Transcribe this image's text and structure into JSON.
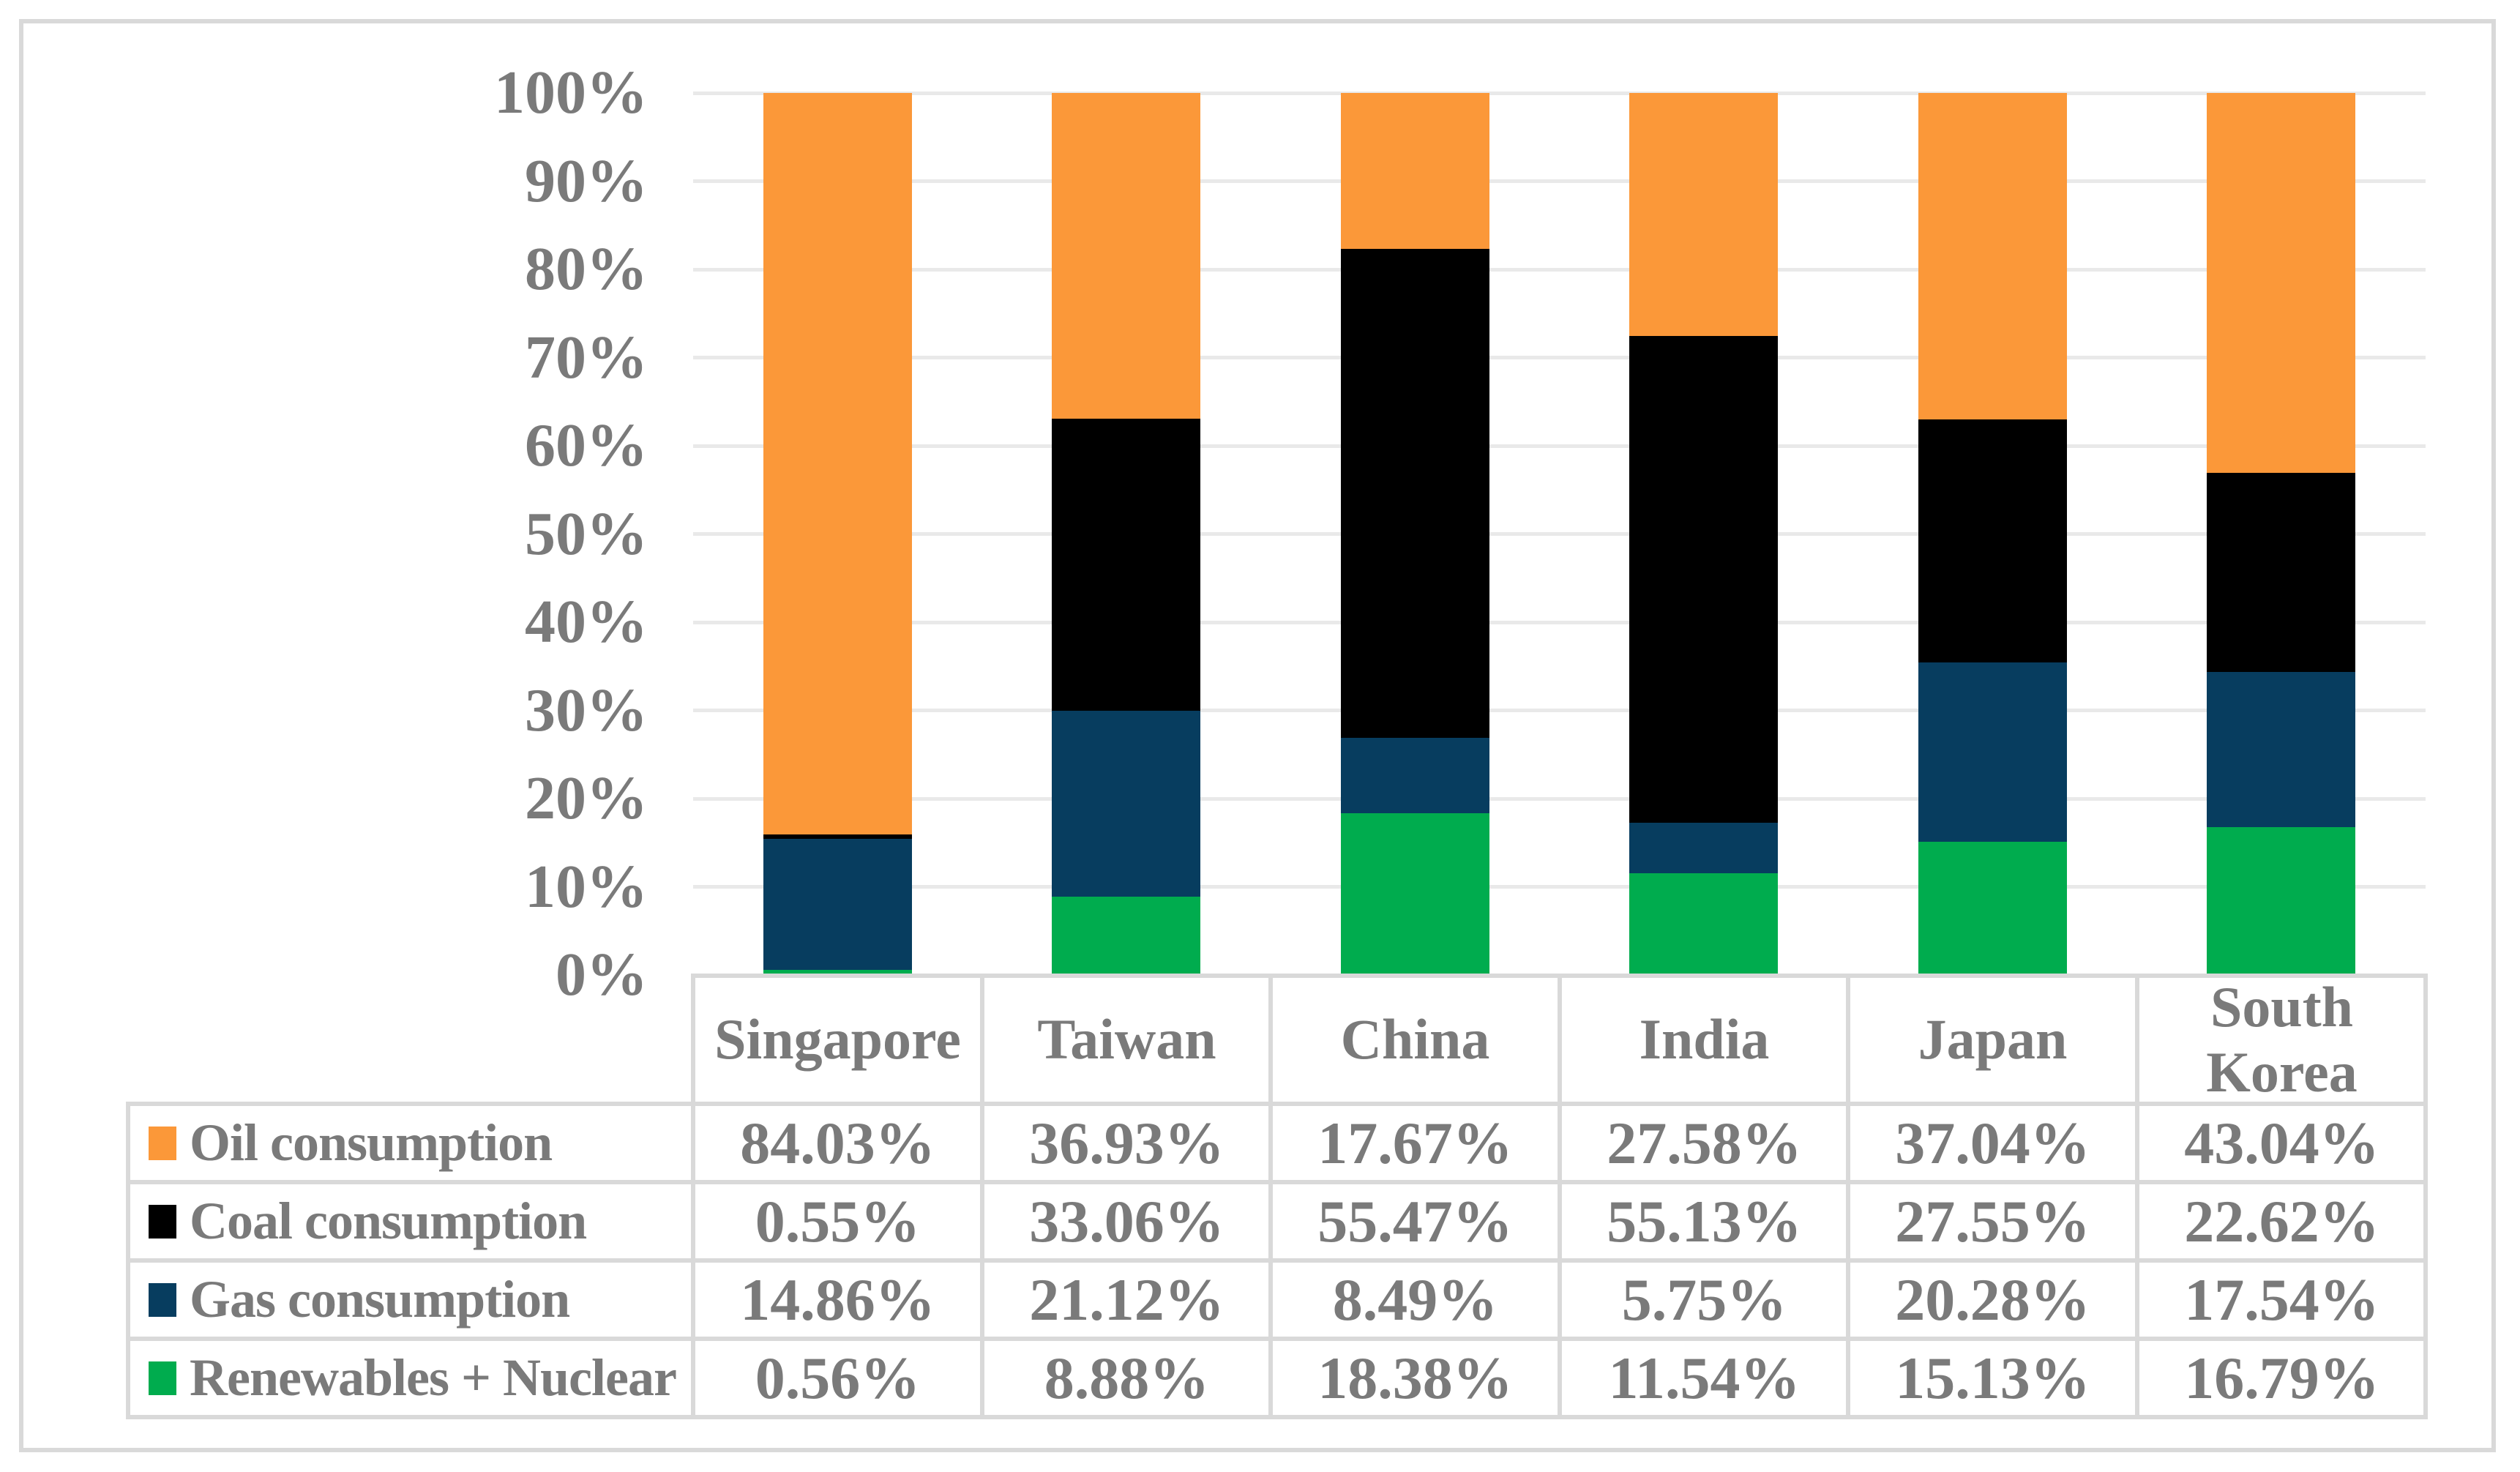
{
  "styles": {
    "background": "#FFFFFF",
    "figure_border_color": "#D9D9D9",
    "table_border_color": "#D9D9D9",
    "gridline_color": "#E9E9E9",
    "text_color": "#7A7A7A"
  },
  "chart_data": {
    "type": "bar",
    "stacked": true,
    "orientation": "vertical",
    "title": "",
    "xlabel": "",
    "ylabel": "",
    "categories": [
      "Singapore",
      "Taiwan",
      "China",
      "India",
      "Japan",
      "South Korea"
    ],
    "series": [
      {
        "name": "Oil consumption",
        "color": "#FB9839",
        "values": [
          84.03,
          36.93,
          17.67,
          27.58,
          37.04,
          43.04
        ]
      },
      {
        "name": "Coal consumption",
        "color": "#000000",
        "values": [
          0.55,
          33.06,
          55.47,
          55.13,
          27.55,
          22.62
        ]
      },
      {
        "name": "Gas consumption",
        "color": "#073D5F",
        "values": [
          14.86,
          21.12,
          8.49,
          5.75,
          20.28,
          17.54
        ]
      },
      {
        "name": "Renewables + Nuclear",
        "color": "#00AC4E",
        "values": [
          0.56,
          8.88,
          18.38,
          11.54,
          15.13,
          16.79
        ]
      }
    ],
    "stack_order_bottom_to_top": [
      "Renewables + Nuclear",
      "Gas consumption",
      "Coal consumption",
      "Oil consumption"
    ],
    "y_axis": {
      "min": 0,
      "max": 100,
      "tick_step": 10,
      "tick_labels": [
        "0%",
        "10%",
        "20%",
        "30%",
        "40%",
        "50%",
        "60%",
        "70%",
        "80%",
        "90%",
        "100%"
      ],
      "grid": true
    },
    "legend_position": "data-table-left-column"
  },
  "data_table": {
    "column_headers": [
      "Singapore",
      "Taiwan",
      "China",
      "India",
      "Japan",
      "South Korea"
    ],
    "rows": [
      {
        "label": "Oil consumption",
        "swatch_color": "#FB9839",
        "values": [
          "84.03%",
          "36.93%",
          "17.67%",
          "27.58%",
          "37.04%",
          "43.04%"
        ]
      },
      {
        "label": "Coal consumption",
        "swatch_color": "#000000",
        "values": [
          "0.55%",
          "33.06%",
          "55.47%",
          "55.13%",
          "27.55%",
          "22.62%"
        ]
      },
      {
        "label": "Gas consumption",
        "swatch_color": "#073D5F",
        "values": [
          "14.86%",
          "21.12%",
          "8.49%",
          "5.75%",
          "20.28%",
          "17.54%"
        ]
      },
      {
        "label": "Renewables + Nuclear",
        "swatch_color": "#00AC4E",
        "values": [
          "0.56%",
          "8.88%",
          "18.38%",
          "11.54%",
          "15.13%",
          "16.79%"
        ]
      }
    ]
  }
}
